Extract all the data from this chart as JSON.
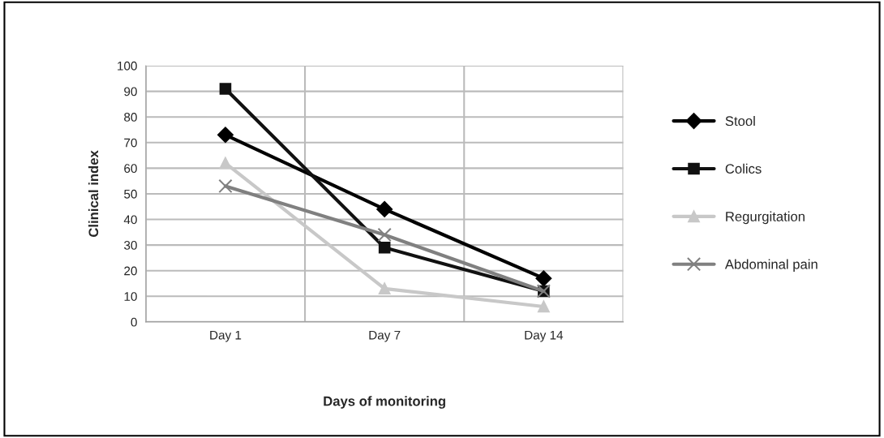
{
  "chart_data": {
    "type": "line",
    "xlabel": "Days of monitoring",
    "ylabel": "Clinical index",
    "categories": [
      "Day 1",
      "Day 7",
      "Day 14"
    ],
    "series": [
      {
        "name": "Stool",
        "color": "#000000",
        "marker": "diamond",
        "values": [
          73,
          44,
          17
        ]
      },
      {
        "name": "Colics",
        "color": "#111111",
        "marker": "square",
        "values": [
          91,
          29,
          12
        ]
      },
      {
        "name": "Regurgitation",
        "color": "#c8c8c8",
        "marker": "triangle",
        "values": [
          62,
          13,
          6
        ]
      },
      {
        "name": "Abdominal pain",
        "color": "#808080",
        "marker": "cross",
        "values": [
          53,
          34,
          12
        ]
      }
    ],
    "ylim": [
      0,
      100
    ],
    "yticks": [
      0,
      10,
      20,
      30,
      40,
      50,
      60,
      70,
      80,
      90,
      100
    ],
    "grid": true,
    "legend": "right"
  }
}
